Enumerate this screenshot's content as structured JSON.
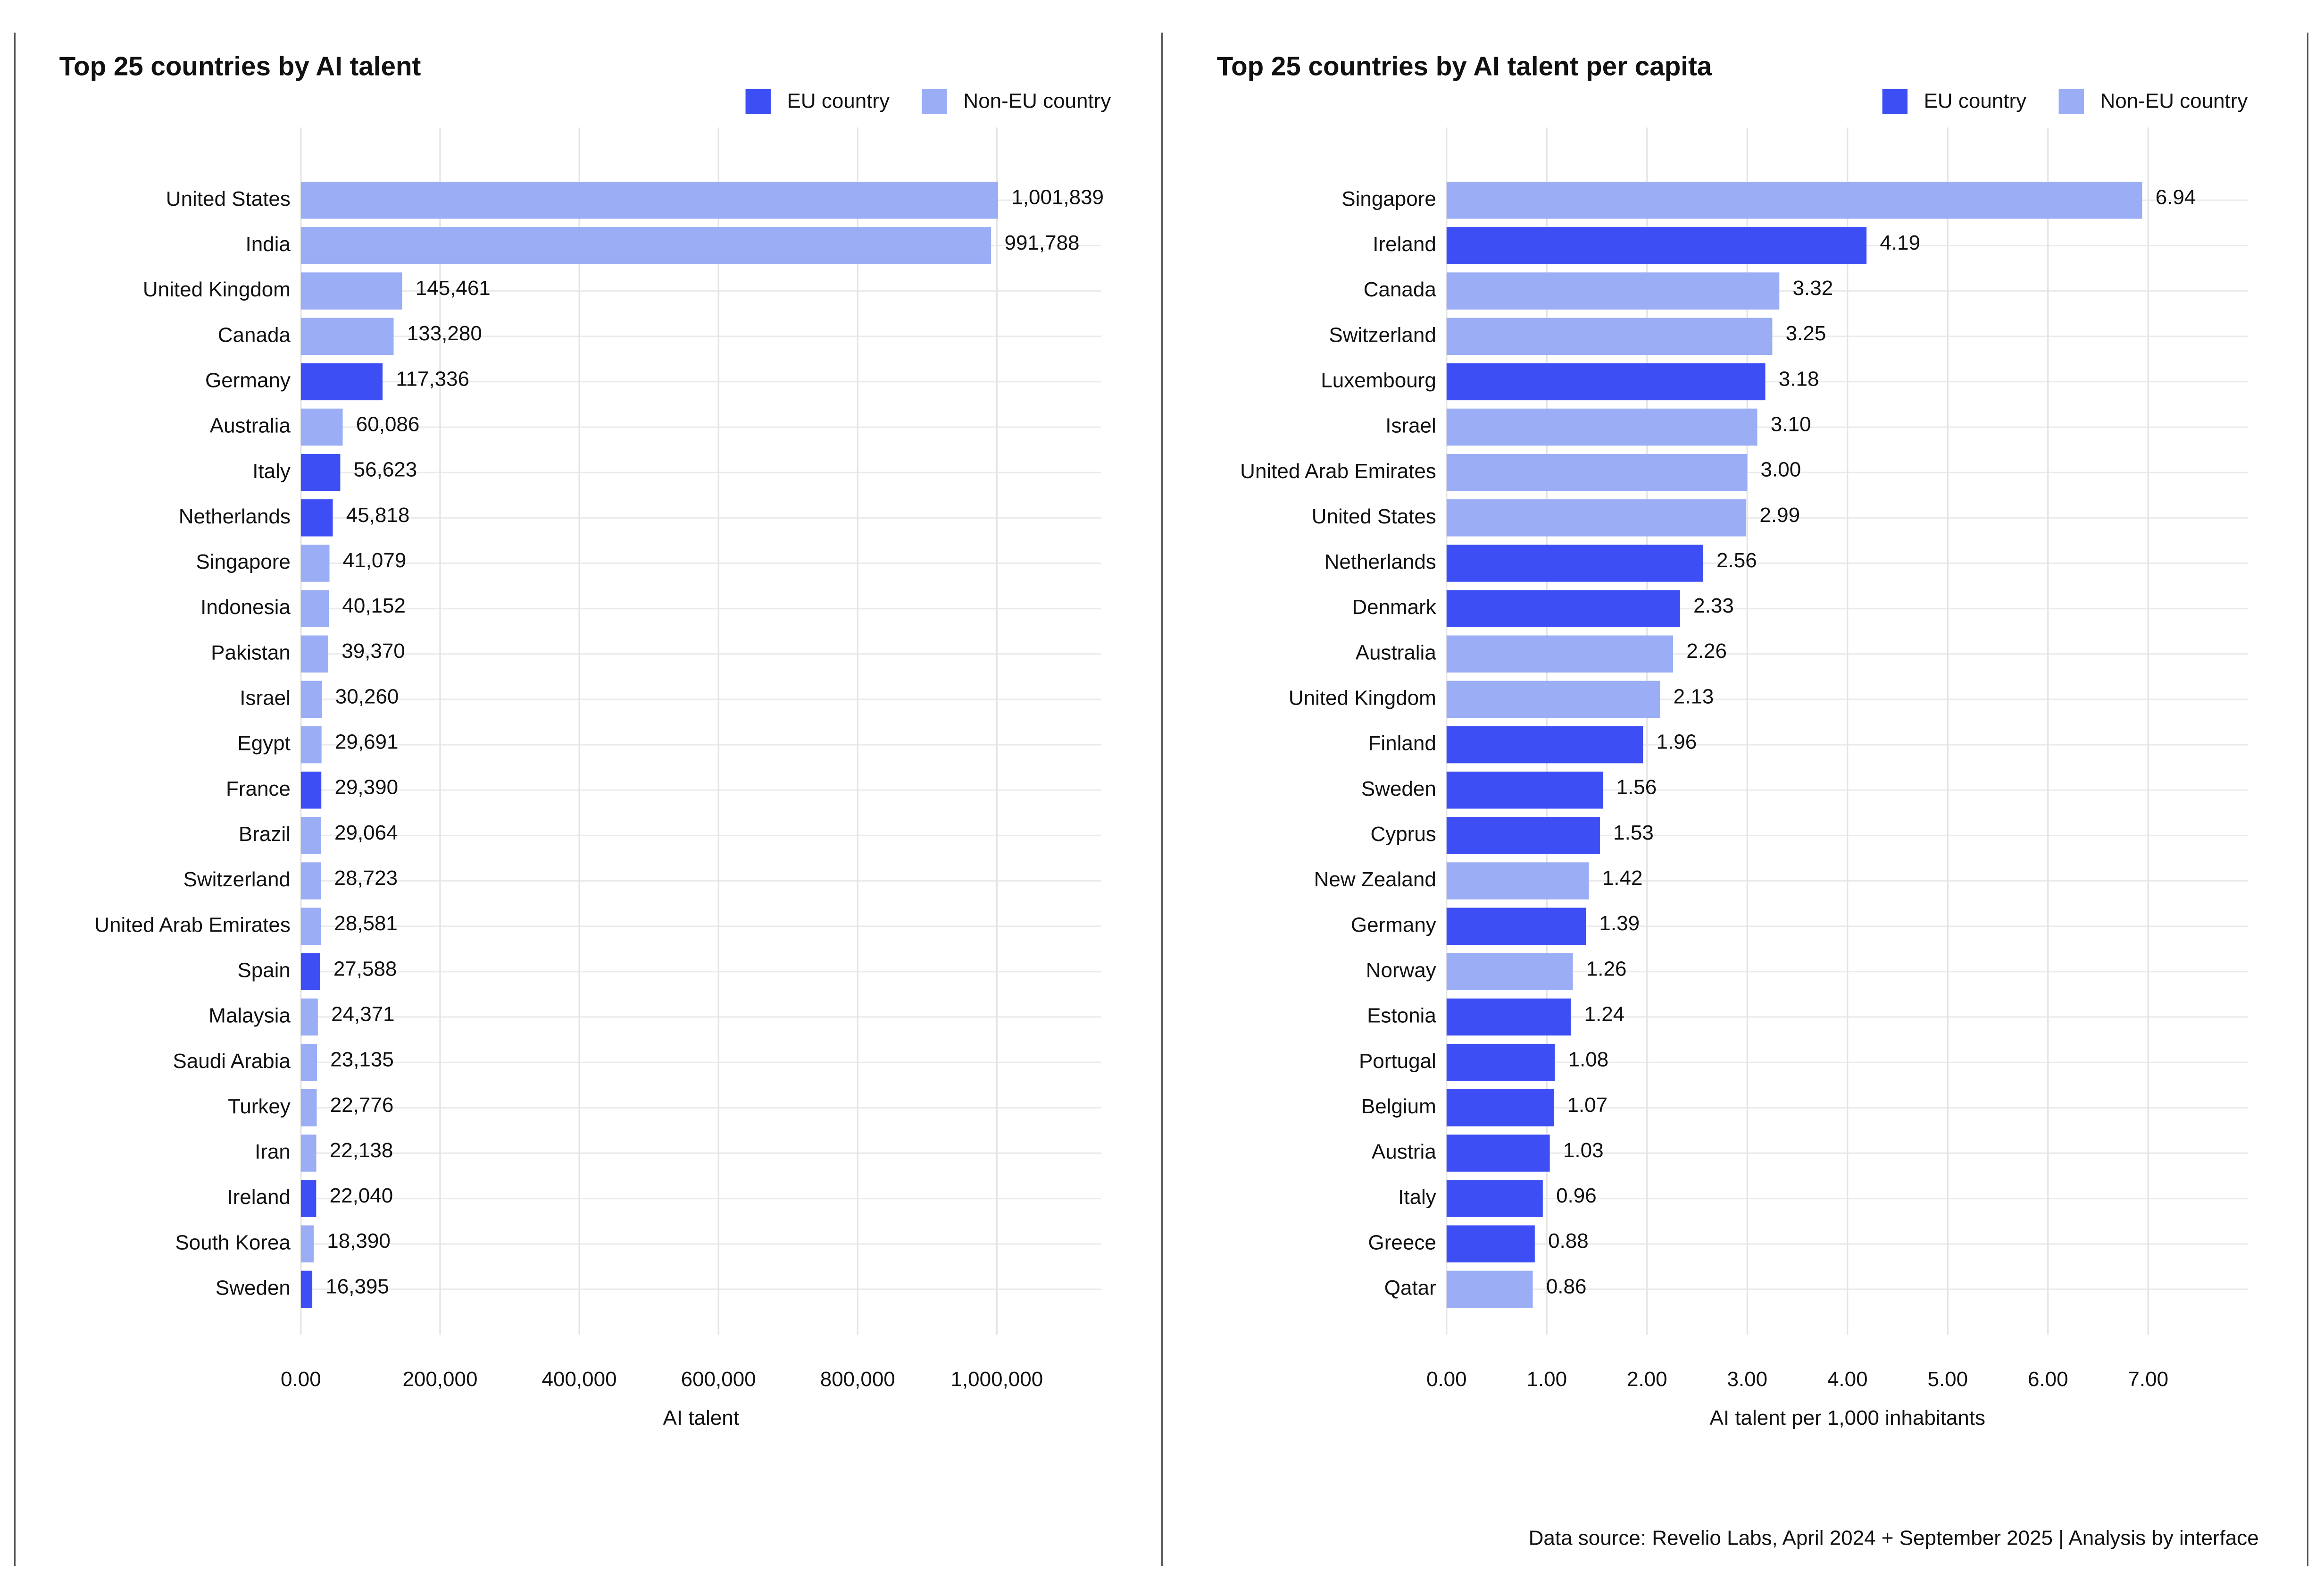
{
  "chart_data": [
    {
      "type": "bar",
      "orientation": "horizontal",
      "title": "Top 25 countries by AI talent",
      "xlabel": "AI talent",
      "legend": [
        {
          "name": "EU country",
          "color": "#3d4ef5"
        },
        {
          "name": "Non-EU country",
          "color": "#9aadf5"
        }
      ],
      "categories": [
        "United States",
        "India",
        "United Kingdom",
        "Canada",
        "Germany",
        "Australia",
        "Italy",
        "Netherlands",
        "Singapore",
        "Indonesia",
        "Pakistan",
        "Israel",
        "Egypt",
        "France",
        "Brazil",
        "Switzerland",
        "United Arab Emirates",
        "Spain",
        "Malaysia",
        "Saudi Arabia",
        "Turkey",
        "Iran",
        "Ireland",
        "South Korea",
        "Sweden"
      ],
      "values": [
        1001839,
        991788,
        145461,
        133280,
        117336,
        60086,
        56623,
        45818,
        41079,
        40152,
        39370,
        30260,
        29691,
        29390,
        29064,
        28723,
        28581,
        27588,
        24371,
        23135,
        22776,
        22138,
        22040,
        18390,
        16395
      ],
      "value_labels": [
        "1,001,839",
        "991,788",
        "145,461",
        "133,280",
        "117,336",
        "60,086",
        "56,623",
        "45,818",
        "41,079",
        "40,152",
        "39,370",
        "30,260",
        "29,691",
        "29,390",
        "29,064",
        "28,723",
        "28,581",
        "27,588",
        "24,371",
        "23,135",
        "22,776",
        "22,138",
        "22,040",
        "18,390",
        "16,395"
      ],
      "colors": [
        "#9aadf5",
        "#9aadf5",
        "#9aadf5",
        "#9aadf5",
        "#3d4ef5",
        "#9aadf5",
        "#3d4ef5",
        "#3d4ef5",
        "#9aadf5",
        "#9aadf5",
        "#9aadf5",
        "#9aadf5",
        "#9aadf5",
        "#3d4ef5",
        "#9aadf5",
        "#9aadf5",
        "#9aadf5",
        "#3d4ef5",
        "#9aadf5",
        "#9aadf5",
        "#9aadf5",
        "#9aadf5",
        "#3d4ef5",
        "#9aadf5",
        "#3d4ef5"
      ],
      "xlim": [
        0,
        1150000
      ],
      "xticks": [
        {
          "value": 0,
          "label": "0.00"
        },
        {
          "value": 200000,
          "label": "200,000"
        },
        {
          "value": 400000,
          "label": "400,000"
        },
        {
          "value": 600000,
          "label": "600,000"
        },
        {
          "value": 800000,
          "label": "800,000"
        },
        {
          "value": 1000000,
          "label": "1,000,000"
        }
      ],
      "grid": true
    },
    {
      "type": "bar",
      "orientation": "horizontal",
      "title": "Top 25 countries by AI talent per capita",
      "xlabel": "AI talent per 1,000 inhabitants",
      "legend": [
        {
          "name": "EU country",
          "color": "#3d4ef5"
        },
        {
          "name": "Non-EU country",
          "color": "#9aadf5"
        }
      ],
      "categories": [
        "Singapore",
        "Ireland",
        "Canada",
        "Switzerland",
        "Luxembourg",
        "Israel",
        "United Arab Emirates",
        "United States",
        "Netherlands",
        "Denmark",
        "Australia",
        "United Kingdom",
        "Finland",
        "Sweden",
        "Cyprus",
        "New Zealand",
        "Germany",
        "Norway",
        "Estonia",
        "Portugal",
        "Belgium",
        "Austria",
        "Italy",
        "Greece",
        "Qatar"
      ],
      "values": [
        6.94,
        4.19,
        3.32,
        3.25,
        3.18,
        3.1,
        3,
        2.99,
        2.56,
        2.33,
        2.26,
        2.13,
        1.96,
        1.56,
        1.53,
        1.42,
        1.39,
        1.26,
        1.24,
        1.08,
        1.07,
        1.03,
        0.96,
        0.88,
        0.86
      ],
      "value_labels": [
        "6.94",
        "4.19",
        "3.32",
        "3.25",
        "3.18",
        "3.10",
        "3.00",
        "2.99",
        "2.56",
        "2.33",
        "2.26",
        "2.13",
        "1.96",
        "1.56",
        "1.53",
        "1.42",
        "1.39",
        "1.26",
        "1.24",
        "1.08",
        "1.07",
        "1.03",
        "0.96",
        "0.88",
        "0.86"
      ],
      "colors": [
        "#9aadf5",
        "#3d4ef5",
        "#9aadf5",
        "#9aadf5",
        "#3d4ef5",
        "#9aadf5",
        "#9aadf5",
        "#9aadf5",
        "#3d4ef5",
        "#3d4ef5",
        "#9aadf5",
        "#9aadf5",
        "#3d4ef5",
        "#3d4ef5",
        "#3d4ef5",
        "#9aadf5",
        "#3d4ef5",
        "#9aadf5",
        "#3d4ef5",
        "#3d4ef5",
        "#3d4ef5",
        "#3d4ef5",
        "#3d4ef5",
        "#3d4ef5",
        "#9aadf5"
      ],
      "xlim": [
        0,
        8
      ],
      "xticks": [
        {
          "value": 0,
          "label": "0.00"
        },
        {
          "value": 1,
          "label": "1.00"
        },
        {
          "value": 2,
          "label": "2.00"
        },
        {
          "value": 3,
          "label": "3.00"
        },
        {
          "value": 4,
          "label": "4.00"
        },
        {
          "value": 5,
          "label": "5.00"
        },
        {
          "value": 6,
          "label": "6.00"
        },
        {
          "value": 7,
          "label": "7.00"
        }
      ],
      "grid": true
    }
  ],
  "source": "Data source: Revelio Labs, April 2024 + September 2025 | Analysis by interface"
}
